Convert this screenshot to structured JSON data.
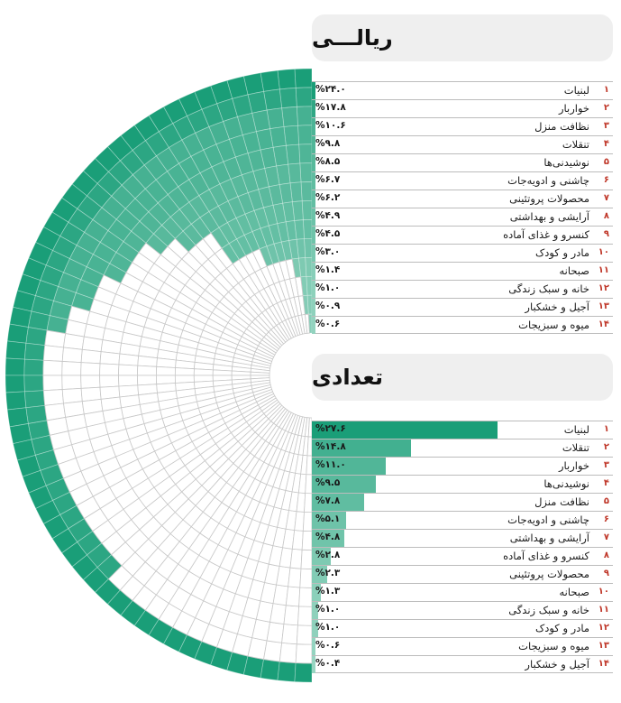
{
  "colors": {
    "accent": "#1a9e78",
    "grid": "#c8c8c8",
    "rank": "#c0392b"
  },
  "titles": {
    "rial": "ریالـــی",
    "count": "تعدادی"
  },
  "chart_data": [
    {
      "type": "bar",
      "title": "ریالـــی",
      "ylim": [
        0,
        24
      ],
      "rows": [
        {
          "rank": "۱",
          "category": "لبنیات",
          "value": 24.0,
          "label": "%۲۴.۰"
        },
        {
          "rank": "۲",
          "category": "خواربار",
          "value": 17.8,
          "label": "%۱۷.۸"
        },
        {
          "rank": "۳",
          "category": "نظافت منزل",
          "value": 10.6,
          "label": "%۱۰.۶"
        },
        {
          "rank": "۴",
          "category": "تنقلات",
          "value": 9.8,
          "label": "%۹.۸"
        },
        {
          "rank": "۵",
          "category": "نوشیدنی‌ها",
          "value": 8.5,
          "label": "%۸.۵"
        },
        {
          "rank": "۶",
          "category": "چاشنی و ادویه‌جات",
          "value": 6.7,
          "label": "%۶.۷"
        },
        {
          "rank": "۷",
          "category": "محصولات پروتئینی",
          "value": 6.2,
          "label": "%۶.۲"
        },
        {
          "rank": "۸",
          "category": "آرایشی و بهداشتی",
          "value": 4.9,
          "label": "%۴.۹"
        },
        {
          "rank": "۹",
          "category": "کنسرو و غذای آماده",
          "value": 4.5,
          "label": "%۴.۵"
        },
        {
          "rank": "۱۰",
          "category": "مادر و کودک",
          "value": 3.0,
          "label": "%۳.۰"
        },
        {
          "rank": "۱۱",
          "category": "صبحانه",
          "value": 1.4,
          "label": "%۱.۴"
        },
        {
          "rank": "۱۲",
          "category": "خانه و سبک زندگی",
          "value": 1.0,
          "label": "%۱.۰"
        },
        {
          "rank": "۱۳",
          "category": "آجیل و خشکبار",
          "value": 0.9,
          "label": "%۰.۹"
        },
        {
          "rank": "۱۴",
          "category": "میوه و سبزیجات",
          "value": 0.6,
          "label": "%۰.۶"
        }
      ]
    },
    {
      "type": "bar",
      "title": "تعدادی",
      "ylim": [
        0,
        27.6
      ],
      "rows": [
        {
          "rank": "۱",
          "category": "لبنیات",
          "value": 27.6,
          "label": "%۲۷.۶"
        },
        {
          "rank": "۲",
          "category": "تنقلات",
          "value": 14.8,
          "label": "%۱۴.۸"
        },
        {
          "rank": "۳",
          "category": "خواربار",
          "value": 11.0,
          "label": "%۱۱.۰"
        },
        {
          "rank": "۴",
          "category": "نوشیدنی‌ها",
          "value": 9.5,
          "label": "%۹.۵"
        },
        {
          "rank": "۵",
          "category": "نظافت منزل",
          "value": 7.8,
          "label": "%۷.۸"
        },
        {
          "rank": "۶",
          "category": "چاشنی و ادویه‌جات",
          "value": 5.1,
          "label": "%۵.۱"
        },
        {
          "rank": "۷",
          "category": "آرایشی و بهداشتی",
          "value": 4.8,
          "label": "%۴.۸"
        },
        {
          "rank": "۸",
          "category": "کنسرو و غذای آماده",
          "value": 2.8,
          "label": "%۲.۸"
        },
        {
          "rank": "۹",
          "category": "محصولات پروتئینی",
          "value": 2.3,
          "label": "%۲.۳"
        },
        {
          "rank": "۱۰",
          "category": "صبحانه",
          "value": 1.3,
          "label": "%۱.۳"
        },
        {
          "rank": "۱۱",
          "category": "خانه و سبک زندگی",
          "value": 1.0,
          "label": "%۱.۰"
        },
        {
          "rank": "۱۲",
          "category": "مادر و کودک",
          "value": 1.0,
          "label": "%۱.۰"
        },
        {
          "rank": "۱۳",
          "category": "میوه و سبزیجات",
          "value": 0.6,
          "label": "%۰.۶"
        },
        {
          "rank": "۱۴",
          "category": "آجیل و خشکبار",
          "value": 0.4,
          "label": "%۰.۴"
        }
      ]
    }
  ]
}
